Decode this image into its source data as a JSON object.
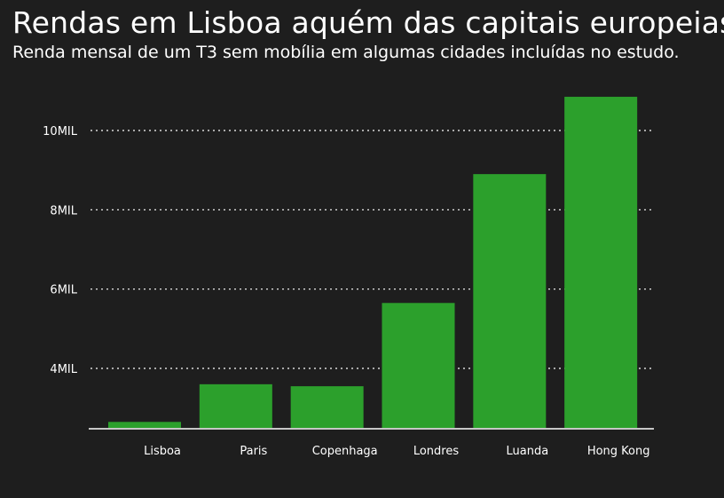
{
  "colors": {
    "background": "#1e1e1e",
    "bar": "#2ca02c",
    "text": "#ffffff",
    "grid": "#ffffff"
  },
  "chart_data": {
    "type": "bar",
    "title": "Rendas em Lisboa aquém das capitais europeias",
    "subtitle": "Renda mensal de um T3 sem mobília em algumas cidades incluídas no estudo.",
    "xlabel": "",
    "ylabel": "",
    "categories": [
      "Lisboa",
      "Paris",
      "Copenhaga",
      "Londres",
      "Luanda",
      "Hong Kong"
    ],
    "values": [
      2650,
      3600,
      3550,
      5650,
      8900,
      10850
    ],
    "ylim": [
      2500,
      11500
    ],
    "yticks": [
      4000,
      6000,
      8000,
      10000
    ],
    "ytick_labels": [
      "4MIL",
      "6MIL",
      "8MIL",
      "10MIL"
    ],
    "grid": true,
    "legend": "none"
  }
}
